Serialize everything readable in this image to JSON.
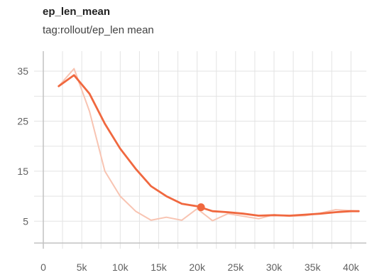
{
  "card": {
    "title": "ep_len_mean",
    "subtitle": "tag:rollout/ep_len mean"
  },
  "colors": {
    "smoothed": "#f0683f",
    "raw": "#f8c4b2",
    "grid": "#e3e3e3",
    "axis": "#c2c2c2",
    "tick_text": "#616161"
  },
  "chart_data": {
    "type": "line",
    "title": "ep_len_mean",
    "subtitle": "tag:rollout/ep_len mean",
    "xlabel": "",
    "ylabel": "",
    "xlim": [
      -1200,
      42000
    ],
    "ylim": [
      -0.5,
      39
    ],
    "x_ticks": [
      0,
      5000,
      10000,
      15000,
      20000,
      25000,
      30000,
      35000,
      40000
    ],
    "x_tick_labels": [
      "0",
      "5k",
      "10k",
      "15k",
      "20k",
      "25k",
      "30k",
      "35k",
      "40k"
    ],
    "y_ticks": [
      5,
      15,
      25,
      35
    ],
    "y_tick_labels": [
      "5",
      "15",
      "25",
      "35"
    ],
    "grid": true,
    "series": [
      {
        "role": "raw",
        "x": [
          2000,
          4000,
          6000,
          8000,
          10000,
          12000,
          14000,
          16000,
          18000,
          20000,
          22000,
          24000,
          26000,
          28000,
          30000,
          32000,
          34000,
          36000,
          38000,
          40000,
          41000
        ],
        "y": [
          32,
          35.5,
          27,
          15,
          10,
          7,
          5.2,
          5.8,
          5.2,
          7.5,
          5.1,
          6.5,
          6,
          5.5,
          6.3,
          6,
          6.1,
          6.6,
          7.3,
          7.1,
          7
        ]
      },
      {
        "role": "smoothed",
        "x": [
          2000,
          4000,
          6000,
          8000,
          10000,
          12000,
          14000,
          16000,
          18000,
          20000,
          22000,
          24000,
          26000,
          28000,
          30000,
          32000,
          34000,
          36000,
          38000,
          40000,
          41000
        ],
        "y": [
          32,
          34.2,
          30.5,
          24.5,
          19.5,
          15.5,
          12,
          10,
          8.5,
          8,
          7,
          6.8,
          6.5,
          6.1,
          6.2,
          6.1,
          6.3,
          6.5,
          6.8,
          7,
          7
        ]
      }
    ],
    "highlight_point": {
      "x": 20500,
      "y": 7.8
    }
  }
}
